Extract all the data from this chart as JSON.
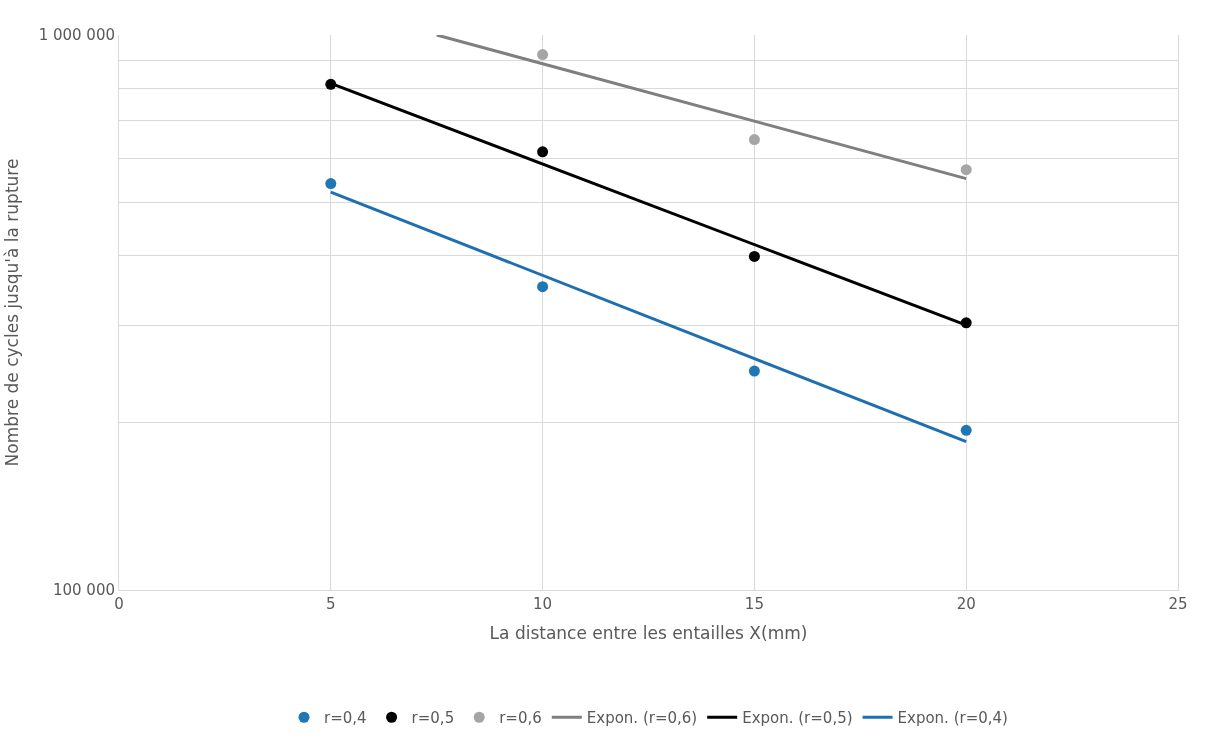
{
  "chart_data": {
    "type": "scatter",
    "xlabel": "La distance entre les entailles X(mm)",
    "ylabel": "Nombre de cycles jusqu'à la rupture",
    "x": [
      5,
      10,
      15,
      20
    ],
    "series": [
      {
        "name": "r=0,4",
        "color": "#1f77b4",
        "marker": "circle",
        "values": [
          540000,
          352000,
          248000,
          194000
        ]
      },
      {
        "name": "r=0,5",
        "color": "#000000",
        "marker": "circle",
        "values": [
          815000,
          616000,
          399000,
          303000
        ]
      },
      {
        "name": "r=0,6",
        "color": "#a5a5a5",
        "marker": "circle",
        "values": [
          null,
          922000,
          648000,
          572000
        ]
      },
      {
        "name": "Expon. (r=0,6)",
        "type": "line",
        "color": "#7f7f7f",
        "marker": "none",
        "x": [
          7.5,
          20
        ],
        "values": [
          1000000,
          551000
        ]
      },
      {
        "name": "Expon. (r=0,5)",
        "type": "line",
        "color": "#000000",
        "marker": "none",
        "x": [
          5,
          20
        ],
        "values": [
          818000,
          300000
        ]
      },
      {
        "name": "Expon. (r=0,4)",
        "type": "line",
        "color": "#1f6fb0",
        "marker": "none",
        "x": [
          5,
          20
        ],
        "values": [
          521000,
          185000
        ]
      }
    ],
    "log": "y",
    "xlim": [
      0,
      25
    ],
    "xticks": [
      0,
      5,
      10,
      15,
      20,
      25
    ],
    "ylim": [
      100000,
      1000000
    ],
    "yticks": [
      {
        "value": 100000,
        "label": "100 000"
      },
      {
        "value": 200000,
        "label": null
      },
      {
        "value": 300000,
        "label": null
      },
      {
        "value": 400000,
        "label": null
      },
      {
        "value": 500000,
        "label": null
      },
      {
        "value": 600000,
        "label": null
      },
      {
        "value": 700000,
        "label": null
      },
      {
        "value": 800000,
        "label": null
      },
      {
        "value": 900000,
        "label": null
      },
      {
        "value": 1000000,
        "label": "1 000 000"
      }
    ],
    "grid": true,
    "legend": "bottom",
    "line_style": "solid"
  }
}
